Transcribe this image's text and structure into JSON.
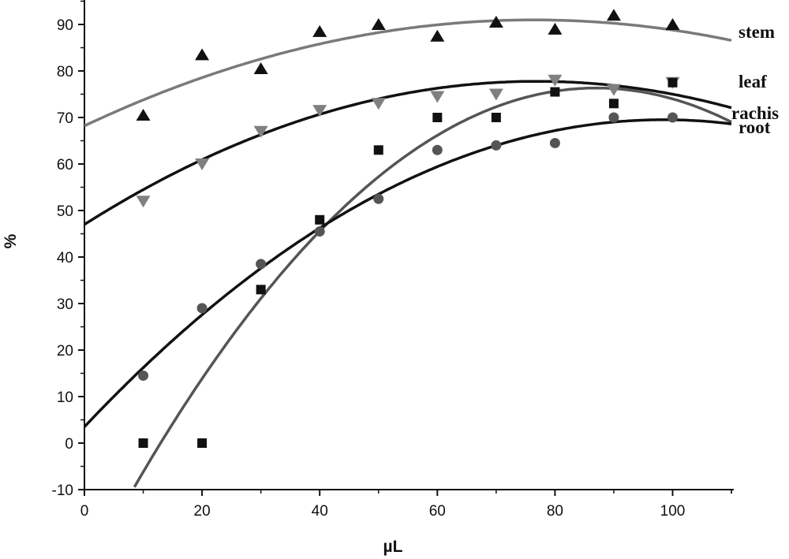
{
  "chart_data": {
    "type": "scatter",
    "title": "",
    "xlabel": "µL",
    "ylabel": "%",
    "xlim": [
      0,
      110
    ],
    "ylim": [
      -10,
      96
    ],
    "x_ticks": [
      0,
      20,
      40,
      60,
      80,
      100
    ],
    "y_ticks": [
      -10,
      0,
      10,
      20,
      30,
      40,
      50,
      60,
      70,
      80,
      90
    ],
    "x_tick_labels": [
      "0",
      "20",
      "40",
      "60",
      "80",
      "100"
    ],
    "y_tick_labels": [
      "-10",
      "0",
      "10",
      "20",
      "30",
      "40",
      "50",
      "60",
      "70",
      "80",
      "90"
    ],
    "grid": false,
    "legend": "none (series labeled at right end of fitted curves)",
    "series": [
      {
        "name": "stem",
        "marker": "triangle-up",
        "marker_color": "#111111",
        "curve_color": "#7a7a7a",
        "points": [
          [
            10,
            70.5
          ],
          [
            20,
            83.5
          ],
          [
            30,
            80.5
          ],
          [
            40,
            88.5
          ],
          [
            50,
            90
          ],
          [
            60,
            87.5
          ],
          [
            70,
            90.5
          ],
          [
            80,
            89
          ],
          [
            90,
            92
          ],
          [
            100,
            90
          ]
        ],
        "fit_quadratic": [
          68.2,
          0.596,
          -0.0039
        ]
      },
      {
        "name": "leaf",
        "marker": "triangle-down",
        "marker_color": "#808080",
        "curve_color": "#111111",
        "points": [
          [
            10,
            52
          ],
          [
            20,
            60
          ],
          [
            30,
            67
          ],
          [
            40,
            71.5
          ],
          [
            50,
            73
          ],
          [
            60,
            74.5
          ],
          [
            70,
            75
          ],
          [
            80,
            78
          ],
          [
            90,
            76
          ],
          [
            100,
            77.5
          ]
        ],
        "fit_quadratic": [
          47,
          0.8,
          -0.0052
        ]
      },
      {
        "name": "rachis",
        "marker": "square",
        "marker_color": "#111111",
        "curve_color": "#555555",
        "points": [
          [
            10,
            0
          ],
          [
            20,
            0
          ],
          [
            30,
            33
          ],
          [
            40,
            48
          ],
          [
            50,
            63
          ],
          [
            60,
            70
          ],
          [
            70,
            70
          ],
          [
            80,
            75.5
          ],
          [
            90,
            73
          ],
          [
            100,
            77.5
          ]
        ],
        "fit_quadratic": [
          -29,
          2.42,
          -0.0139
        ]
      },
      {
        "name": "root",
        "marker": "circle",
        "marker_color": "#555555",
        "curve_color": "#111111",
        "points": [
          [
            10,
            14.5
          ],
          [
            20,
            29
          ],
          [
            30,
            38.5
          ],
          [
            40,
            45.5
          ],
          [
            50,
            52.5
          ],
          [
            60,
            63
          ],
          [
            70,
            64
          ],
          [
            80,
            64.5
          ],
          [
            90,
            70
          ],
          [
            100,
            70
          ]
        ],
        "fit_quadratic": [
          3.5,
          1.34,
          -0.0068
        ]
      }
    ]
  }
}
